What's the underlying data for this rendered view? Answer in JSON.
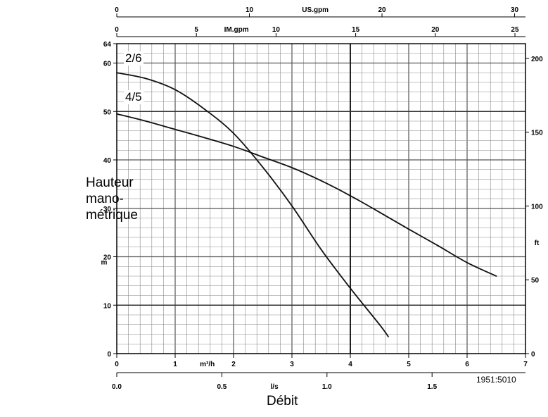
{
  "chart_data": {
    "type": "line",
    "xlabel": "Débit",
    "ylabel_lines": [
      "Hauteur",
      "mano-",
      "métrique"
    ],
    "left_unit": "m",
    "right_unit": "ft",
    "bottom_unit": "m³/h",
    "xlim": [
      0,
      7
    ],
    "ylim": [
      0,
      64
    ],
    "axes": {
      "bottom_m3h": {
        "ticks": [
          0,
          1,
          2,
          3,
          4,
          5,
          6,
          7
        ],
        "unit": "m³/h"
      },
      "bottom_ls": {
        "ticks": [
          "0.0",
          "0.5",
          "1.0",
          "1.5"
        ],
        "values": [
          0,
          0.5,
          1.0,
          1.5
        ],
        "unit": "l/s"
      },
      "top_usgpm": {
        "ticks": [
          0,
          10,
          20,
          30
        ],
        "unit": "US.gpm"
      },
      "top_imgpm": {
        "ticks": [
          0,
          5,
          10,
          15,
          20,
          25
        ],
        "unit": "IM.gpm"
      },
      "left_m": {
        "ticks": [
          0,
          10,
          20,
          30,
          40,
          50,
          60,
          64
        ]
      },
      "right_ft": {
        "ticks": [
          0,
          50,
          100,
          150,
          200
        ]
      }
    },
    "grid": true,
    "series": [
      {
        "name": "2/6",
        "x": [
          0,
          0.5,
          1.0,
          1.5,
          2.0,
          2.5,
          3.0,
          3.5,
          4.0,
          4.5,
          4.65
        ],
        "y": [
          58,
          56.8,
          54.5,
          50.5,
          45.5,
          38.5,
          30.5,
          21.5,
          13.5,
          6.0,
          3.5
        ]
      },
      {
        "name": "4/5",
        "x": [
          0,
          0.5,
          1.0,
          1.5,
          2.0,
          2.5,
          3.0,
          3.5,
          4.0,
          4.5,
          5.0,
          5.5,
          6.0,
          6.5
        ],
        "y": [
          49.5,
          48.0,
          46.3,
          44.6,
          42.8,
          40.6,
          38.4,
          35.7,
          32.6,
          29.2,
          25.7,
          22.3,
          18.8,
          16.0
        ]
      }
    ],
    "code": "1951:5010"
  }
}
